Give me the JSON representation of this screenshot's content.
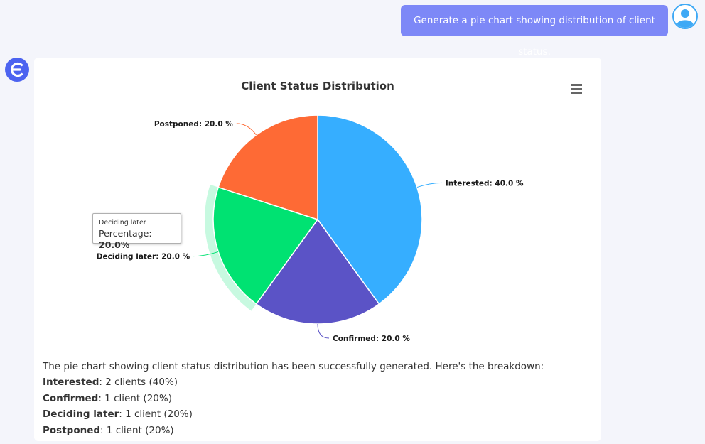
{
  "user_message": {
    "text": "Generate a pie chart showing distribution of client status."
  },
  "colors": {
    "user_bubble": "#7d88f7",
    "bot_avatar": "#4c63f0",
    "user_avatar": "#3fa9f5",
    "page_background": "#f4f5fb"
  },
  "chart_data": {
    "type": "pie",
    "title": "Client Status Distribution",
    "series": [
      {
        "name": "Interested",
        "value": 40.0,
        "label": "Interested: 40.0 %",
        "color": "#36aeff"
      },
      {
        "name": "Confirmed",
        "value": 20.0,
        "label": "Confirmed: 20.0 %",
        "color": "#5b53c6"
      },
      {
        "name": "Deciding later",
        "value": 20.0,
        "label": "Deciding later: 20.0 %",
        "color": "#00e272"
      },
      {
        "name": "Postponed",
        "value": 20.0,
        "label": "Postponed: 20.0 %",
        "color": "#fe6a35"
      }
    ],
    "highlighted_series": "Deciding later",
    "tooltip": {
      "name": "Deciding later",
      "label": "Percentage",
      "value": "20.0%"
    }
  },
  "summary": {
    "intro": "The pie chart showing client status distribution has been successfully generated. Here's the breakdown:",
    "items": [
      {
        "label": "Interested",
        "text": ": 2 clients (40%)"
      },
      {
        "label": "Confirmed",
        "text": ": 1 client (20%)"
      },
      {
        "label": "Deciding later",
        "text": ": 1 client (20%)"
      },
      {
        "label": "Postponed",
        "text": ": 1 client (20%)"
      }
    ]
  }
}
